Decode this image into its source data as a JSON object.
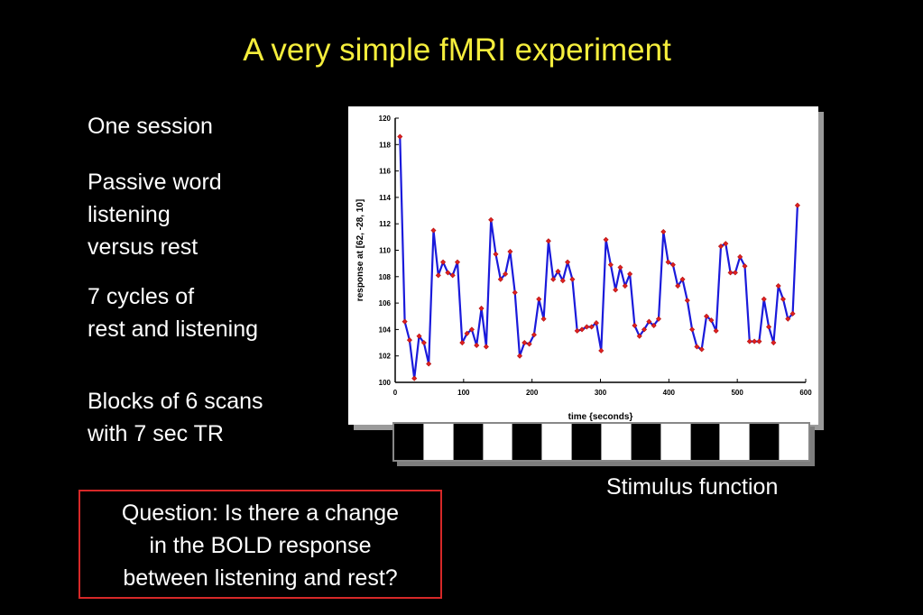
{
  "slide": {
    "title": "A very simple fMRI experiment",
    "bullets": [
      {
        "lines": [
          "One session"
        ]
      },
      {
        "lines": [
          "Passive word",
          "listening",
          "versus rest"
        ]
      },
      {
        "lines": [
          "7 cycles of",
          "rest and listening"
        ]
      },
      {
        "lines": [
          "Blocks of 6 scans",
          "with 7 sec TR"
        ]
      }
    ],
    "stimulus_label": "Stimulus function",
    "question": [
      "Question: Is there a change",
      "in the BOLD response",
      "between listening and rest?"
    ]
  },
  "stimulus": {
    "blocks": [
      "rest",
      "listen",
      "rest",
      "listen",
      "rest",
      "listen",
      "rest",
      "listen",
      "rest",
      "listen",
      "rest",
      "listen",
      "rest",
      "listen"
    ],
    "colors": {
      "rest": "#000000",
      "listen": "#ffffff"
    }
  },
  "colors": {
    "title": "#f5ee3c",
    "line": "#1a1adb",
    "marker": "#e02020",
    "question_border": "#d62828"
  },
  "chart_data": {
    "type": "line",
    "title": "",
    "xlabel": "time {seconds}",
    "ylabel": "response at [62, -28, 10]",
    "xlim": [
      0,
      600
    ],
    "ylim": [
      100,
      120
    ],
    "xticks": [
      0,
      100,
      200,
      300,
      400,
      500,
      600
    ],
    "yticks": [
      100,
      102,
      104,
      106,
      108,
      110,
      112,
      114,
      116,
      118,
      120
    ],
    "grid": false,
    "series": [
      {
        "x": [
          7,
          14,
          21,
          28,
          35,
          42,
          49,
          56,
          63,
          70,
          77,
          84,
          91,
          98,
          105,
          112,
          119,
          126,
          133,
          140,
          147,
          154,
          161,
          168,
          175,
          182,
          189,
          196,
          203,
          210,
          217,
          224,
          231,
          238,
          245,
          252,
          259,
          266,
          273,
          280,
          287,
          294,
          301,
          308,
          315,
          322,
          329,
          336,
          343,
          350,
          357,
          364,
          371,
          378,
          385,
          392,
          399,
          406,
          413,
          420,
          427,
          434,
          441,
          448,
          455,
          462,
          469,
          476,
          483,
          490,
          497,
          504,
          511,
          518,
          525,
          532,
          539,
          546,
          553,
          560,
          567,
          574,
          581,
          588
        ],
        "y": [
          118.6,
          104.6,
          103.2,
          100.3,
          103.5,
          103.0,
          101.4,
          111.5,
          108.1,
          109.1,
          108.3,
          108.1,
          109.1,
          103.0,
          103.7,
          104.0,
          102.8,
          105.6,
          102.7,
          112.3,
          109.7,
          107.8,
          108.2,
          109.9,
          106.8,
          102.0,
          103.0,
          102.9,
          103.6,
          106.3,
          104.8,
          110.7,
          107.8,
          108.4,
          107.7,
          109.1,
          107.8,
          103.9,
          104.0,
          104.2,
          104.2,
          104.5,
          102.4,
          110.8,
          108.9,
          107.0,
          108.7,
          107.3,
          108.2,
          104.3,
          103.5,
          104.0,
          104.6,
          104.3,
          104.8,
          111.4,
          109.1,
          108.9,
          107.3,
          107.8,
          106.2,
          104.0,
          102.7,
          102.5,
          105.0,
          104.7,
          103.9,
          110.3,
          110.5,
          108.3,
          108.3,
          109.5,
          108.8,
          103.1,
          103.1,
          103.1,
          106.3,
          104.2,
          103.0,
          107.3,
          106.3,
          104.8,
          105.2,
          113.4
        ]
      }
    ]
  }
}
